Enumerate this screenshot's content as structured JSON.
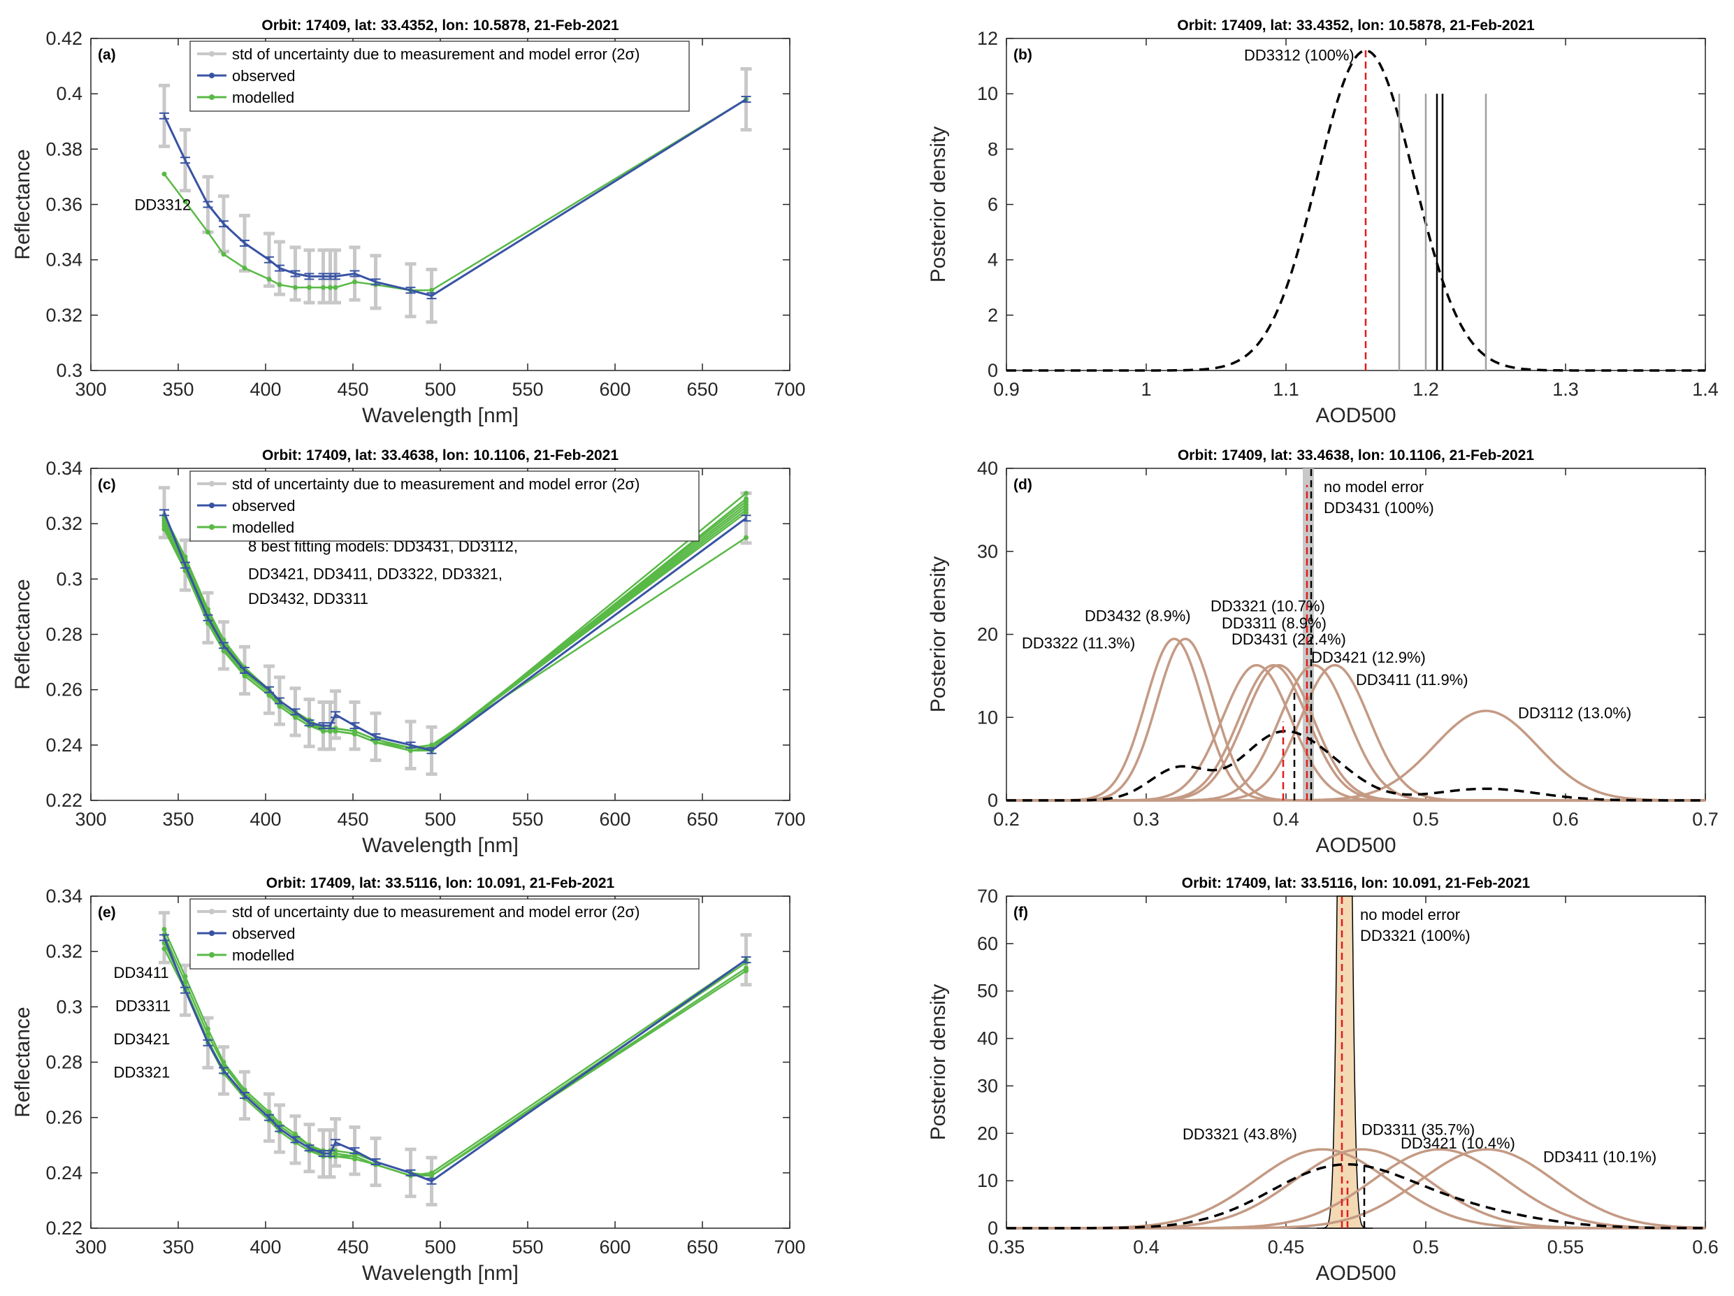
{
  "chart_data": [
    {
      "panel": "(a)",
      "type": "line",
      "title": "Orbit: 17409, lat: 33.4352, lon: 10.5878, 21-Feb-2021",
      "xlabel": "Wavelength [nm]",
      "ylabel": "Reflectance",
      "xlim": [
        300,
        700
      ],
      "ylim": [
        0.3,
        0.42
      ],
      "xticks": [
        300,
        350,
        400,
        450,
        500,
        550,
        600,
        650,
        700
      ],
      "yticks": [
        0.3,
        0.32,
        0.34,
        0.36,
        0.38,
        0.4,
        0.42
      ],
      "x": [
        342,
        354,
        367,
        376,
        388,
        402,
        408,
        417,
        425,
        433,
        437,
        440,
        451,
        463,
        483,
        495,
        675
      ],
      "legend": {
        "std": "std of uncertainty due to measurement and model error (2σ)",
        "observed": "observed",
        "modelled": "modelled"
      },
      "annotations": [
        {
          "text": "DD3312",
          "x": 325,
          "y": 0.358
        }
      ],
      "std_half_width": [
        0.011,
        0.011,
        0.01,
        0.01,
        0.01,
        0.0095,
        0.0095,
        0.0095,
        0.0095,
        0.0095,
        0.0095,
        0.0095,
        0.0095,
        0.0095,
        0.0095,
        0.0095,
        0.011
      ],
      "std_center": [
        0.392,
        0.376,
        0.36,
        0.353,
        0.346,
        0.34,
        0.337,
        0.335,
        0.334,
        0.334,
        0.334,
        0.334,
        0.335,
        0.332,
        0.329,
        0.327,
        0.398
      ],
      "series": [
        {
          "name": "observed",
          "color": "#3853a4",
          "values": [
            0.392,
            0.376,
            0.36,
            0.353,
            0.346,
            0.34,
            0.337,
            0.335,
            0.334,
            0.334,
            0.334,
            0.334,
            0.335,
            0.332,
            0.329,
            0.327,
            0.398
          ]
        },
        {
          "name": "modelled DD3312",
          "color": "#59b947",
          "values": [
            0.371,
            0.361,
            0.35,
            0.342,
            0.337,
            0.333,
            0.331,
            0.33,
            0.33,
            0.33,
            0.33,
            0.33,
            0.332,
            0.331,
            0.329,
            0.329,
            0.398
          ]
        }
      ]
    },
    {
      "panel": "(b)",
      "type": "line",
      "title": "Orbit: 17409, lat: 33.4352, lon: 10.5878, 21-Feb-2021",
      "xlabel": "AOD500",
      "ylabel": "Posterior density",
      "xlim": [
        0.9,
        1.4
      ],
      "ylim": [
        0,
        12
      ],
      "xticks": [
        0.9,
        1.0,
        1.1,
        1.2,
        1.3,
        1.4
      ],
      "xtick_labels": [
        "0.9",
        "1",
        "1.1",
        "1.2",
        "1.3",
        "1.4"
      ],
      "yticks": [
        0,
        2,
        4,
        6,
        8,
        10,
        12
      ],
      "curves": [
        {
          "label": "DD3312 (100%)",
          "mu": 1.157,
          "sigma": 0.0345,
          "weight": 1.0,
          "style": "dashed-black",
          "label_x": 1.07,
          "label_y": 11.2
        }
      ],
      "vlines": [
        {
          "x": 1.157,
          "ymax": 11.6,
          "color": "#e31a1c",
          "style": "dashed"
        },
        {
          "x": 1.181,
          "ymax": 10.0,
          "color": "#a0a0a0",
          "style": "solid"
        },
        {
          "x": 1.2,
          "ymax": 10.0,
          "color": "#a0a0a0",
          "style": "solid"
        },
        {
          "x": 1.208,
          "ymax": 10.0,
          "color": "#000000",
          "style": "solid"
        },
        {
          "x": 1.212,
          "ymax": 10.0,
          "color": "#000000",
          "style": "solid"
        },
        {
          "x": 1.243,
          "ymax": 10.0,
          "color": "#a0a0a0",
          "style": "solid"
        }
      ]
    },
    {
      "panel": "(c)",
      "type": "line",
      "title": "Orbit: 17409, lat: 33.4638, lon: 10.1106, 21-Feb-2021",
      "xlabel": "Wavelength [nm]",
      "ylabel": "Reflectance",
      "xlim": [
        300,
        700
      ],
      "ylim": [
        0.22,
        0.34
      ],
      "xticks": [
        300,
        350,
        400,
        450,
        500,
        550,
        600,
        650,
        700
      ],
      "yticks": [
        0.22,
        0.24,
        0.26,
        0.28,
        0.3,
        0.32,
        0.34
      ],
      "x": [
        342,
        354,
        367,
        376,
        388,
        402,
        408,
        417,
        425,
        433,
        437,
        440,
        451,
        463,
        483,
        495,
        675
      ],
      "legend": {
        "std": "std of uncertainty due to measurement and model error (2σ)",
        "observed": "observed",
        "modelled": "modelled"
      },
      "annotations": [
        {
          "text": "8 best fitting models: DD3431, DD3112,",
          "x": 390,
          "y": 0.31
        },
        {
          "text": "DD3421, DD3411, DD3322, DD3321,",
          "x": 390,
          "y": 0.3
        },
        {
          "text": "DD3432, DD3311",
          "x": 390,
          "y": 0.291
        }
      ],
      "std_half_width": [
        0.009,
        0.009,
        0.009,
        0.0085,
        0.0085,
        0.0085,
        0.0085,
        0.0085,
        0.0085,
        0.0085,
        0.0085,
        0.0085,
        0.0085,
        0.0085,
        0.0085,
        0.0085,
        0.009
      ],
      "std_center": [
        0.324,
        0.305,
        0.286,
        0.276,
        0.267,
        0.26,
        0.256,
        0.252,
        0.248,
        0.247,
        0.247,
        0.251,
        0.247,
        0.243,
        0.24,
        0.238,
        0.322
      ],
      "series": [
        {
          "name": "observed",
          "color": "#3853a4",
          "values": [
            0.324,
            0.305,
            0.286,
            0.276,
            0.267,
            0.26,
            0.256,
            0.252,
            0.248,
            0.247,
            0.247,
            0.251,
            0.247,
            0.243,
            0.24,
            0.238,
            0.322
          ]
        },
        {
          "name": "DD3431",
          "color": "#59b947",
          "values": [
            0.322,
            0.307,
            0.289,
            0.278,
            0.268,
            0.26,
            0.256,
            0.252,
            0.249,
            0.246,
            0.246,
            0.246,
            0.245,
            0.242,
            0.239,
            0.239,
            0.328
          ]
        },
        {
          "name": "DD3112",
          "color": "#59b947",
          "values": [
            0.321,
            0.306,
            0.287,
            0.276,
            0.266,
            0.259,
            0.255,
            0.251,
            0.248,
            0.245,
            0.245,
            0.245,
            0.244,
            0.241,
            0.239,
            0.24,
            0.315
          ]
        },
        {
          "name": "DD3421",
          "color": "#59b947",
          "values": [
            0.323,
            0.308,
            0.289,
            0.278,
            0.268,
            0.26,
            0.256,
            0.252,
            0.249,
            0.246,
            0.246,
            0.246,
            0.245,
            0.242,
            0.239,
            0.239,
            0.326
          ]
        },
        {
          "name": "DD3411",
          "color": "#59b947",
          "values": [
            0.322,
            0.307,
            0.288,
            0.277,
            0.267,
            0.26,
            0.256,
            0.252,
            0.248,
            0.246,
            0.246,
            0.246,
            0.245,
            0.242,
            0.239,
            0.239,
            0.324
          ]
        },
        {
          "name": "DD3322",
          "color": "#59b947",
          "values": [
            0.318,
            0.303,
            0.284,
            0.274,
            0.265,
            0.258,
            0.254,
            0.25,
            0.247,
            0.245,
            0.245,
            0.245,
            0.244,
            0.241,
            0.238,
            0.238,
            0.331
          ]
        },
        {
          "name": "DD3321",
          "color": "#59b947",
          "values": [
            0.319,
            0.304,
            0.285,
            0.275,
            0.265,
            0.258,
            0.254,
            0.25,
            0.247,
            0.245,
            0.245,
            0.245,
            0.244,
            0.241,
            0.238,
            0.238,
            0.329
          ]
        },
        {
          "name": "DD3432",
          "color": "#59b947",
          "values": [
            0.32,
            0.305,
            0.286,
            0.276,
            0.266,
            0.259,
            0.255,
            0.251,
            0.248,
            0.245,
            0.245,
            0.245,
            0.244,
            0.241,
            0.238,
            0.239,
            0.327
          ]
        },
        {
          "name": "DD3311",
          "color": "#59b947",
          "values": [
            0.321,
            0.306,
            0.287,
            0.277,
            0.267,
            0.259,
            0.255,
            0.251,
            0.248,
            0.246,
            0.246,
            0.246,
            0.245,
            0.242,
            0.239,
            0.239,
            0.325
          ]
        }
      ]
    },
    {
      "panel": "(d)",
      "type": "line",
      "title": "Orbit: 17409, lat: 33.4638, lon: 10.1106, 21-Feb-2021",
      "xlabel": "AOD500",
      "ylabel": "Posterior density",
      "xlim": [
        0.2,
        0.7
      ],
      "ylim": [
        0,
        40
      ],
      "xticks": [
        0.2,
        0.3,
        0.4,
        0.5,
        0.6,
        0.7
      ],
      "xtick_labels": [
        "0.2",
        "0.3",
        "0.4",
        "0.5",
        "0.6",
        "0.7"
      ],
      "yticks": [
        0,
        10,
        20,
        30,
        40
      ],
      "no_model_error": {
        "label1": "no model error",
        "label2": "DD3431 (100%)",
        "center": 0.416,
        "half_width": 0.004
      },
      "curves": [
        {
          "label": "DD3322 (11.3%)",
          "mu": 0.32,
          "sigma": 0.0205,
          "weight": 0.113,
          "style": "brown",
          "label_x": 0.211,
          "label_y": 18.3
        },
        {
          "label": "DD3432 (8.9%)",
          "mu": 0.328,
          "sigma": 0.0205,
          "weight": 0.089,
          "style": "brown",
          "label_x": 0.256,
          "label_y": 21.6
        },
        {
          "label": "DD3321 (10.7%)",
          "mu": 0.379,
          "sigma": 0.0245,
          "weight": 0.107,
          "style": "brown",
          "label_x": 0.346,
          "label_y": 22.8
        },
        {
          "label": "DD3311 (8.9%)",
          "mu": 0.391,
          "sigma": 0.0245,
          "weight": 0.089,
          "style": "brown",
          "label_x": 0.354,
          "label_y": 20.7
        },
        {
          "label": "DD3431 (22.4%)",
          "mu": 0.395,
          "sigma": 0.0245,
          "weight": 0.224,
          "style": "brown",
          "label_x": 0.361,
          "label_y": 18.8
        },
        {
          "label": "DD3421 (12.9%)",
          "mu": 0.42,
          "sigma": 0.0245,
          "weight": 0.129,
          "style": "brown",
          "label_x": 0.418,
          "label_y": 16.6
        },
        {
          "label": "DD3411 (11.9%)",
          "mu": 0.435,
          "sigma": 0.0245,
          "weight": 0.119,
          "style": "brown",
          "label_x": 0.45,
          "label_y": 13.9
        },
        {
          "label": "DD3112 (13.0%)",
          "mu": 0.543,
          "sigma": 0.037,
          "weight": 0.13,
          "style": "brown",
          "label_x": 0.566,
          "label_y": 9.9
        }
      ],
      "mixture": true,
      "vlines": [
        {
          "x": 0.398,
          "ymax": 9.5,
          "color": "#e31a1c",
          "style": "dashed"
        },
        {
          "x": 0.406,
          "ymax": 13.0,
          "color": "#000000",
          "style": "dashed"
        },
        {
          "x": 0.415,
          "ymax": 38.0,
          "color": "#e31a1c",
          "style": "dashed"
        },
        {
          "x": 0.418,
          "ymax": 40.0,
          "color": "#000000",
          "style": "dashed"
        }
      ]
    },
    {
      "panel": "(e)",
      "type": "line",
      "title": "Orbit: 17409, lat: 33.5116, lon: 10.091, 21-Feb-2021",
      "xlabel": "Wavelength [nm]",
      "ylabel": "Reflectance",
      "xlim": [
        300,
        700
      ],
      "ylim": [
        0.22,
        0.34
      ],
      "xticks": [
        300,
        350,
        400,
        450,
        500,
        550,
        600,
        650,
        700
      ],
      "yticks": [
        0.22,
        0.24,
        0.26,
        0.28,
        0.3,
        0.32,
        0.34
      ],
      "x": [
        342,
        354,
        367,
        376,
        388,
        402,
        408,
        417,
        425,
        433,
        437,
        440,
        451,
        463,
        483,
        495,
        675
      ],
      "legend": {
        "std": "std of uncertainty due to measurement and model error (2σ)",
        "observed": "observed",
        "modelled": "modelled"
      },
      "annotations": [
        {
          "text": "DD3411",
          "x": 313,
          "y": 0.3105
        },
        {
          "text": "DD3311",
          "x": 314,
          "y": 0.2985
        },
        {
          "text": "DD3421",
          "x": 313,
          "y": 0.2865
        },
        {
          "text": "DD3321",
          "x": 313,
          "y": 0.2745
        }
      ],
      "std_half_width": [
        0.009,
        0.009,
        0.009,
        0.0085,
        0.0085,
        0.0085,
        0.0085,
        0.0085,
        0.0085,
        0.0085,
        0.0085,
        0.0085,
        0.0085,
        0.0085,
        0.0085,
        0.0085,
        0.009
      ],
      "std_center": [
        0.325,
        0.306,
        0.287,
        0.277,
        0.268,
        0.26,
        0.256,
        0.252,
        0.249,
        0.247,
        0.247,
        0.251,
        0.248,
        0.244,
        0.24,
        0.237,
        0.317
      ],
      "series": [
        {
          "name": "observed",
          "color": "#3853a4",
          "values": [
            0.325,
            0.306,
            0.287,
            0.277,
            0.268,
            0.26,
            0.256,
            0.252,
            0.249,
            0.247,
            0.247,
            0.251,
            0.248,
            0.244,
            0.24,
            0.237,
            0.317
          ]
        },
        {
          "name": "DD3411",
          "color": "#59b947",
          "values": [
            0.328,
            0.311,
            0.292,
            0.28,
            0.27,
            0.262,
            0.258,
            0.254,
            0.25,
            0.248,
            0.248,
            0.248,
            0.247,
            0.244,
            0.24,
            0.239,
            0.313
          ]
        },
        {
          "name": "DD3311",
          "color": "#59b947",
          "values": [
            0.323,
            0.307,
            0.288,
            0.277,
            0.268,
            0.26,
            0.256,
            0.252,
            0.249,
            0.246,
            0.246,
            0.246,
            0.246,
            0.243,
            0.239,
            0.239,
            0.316
          ]
        },
        {
          "name": "DD3421",
          "color": "#59b947",
          "values": [
            0.326,
            0.309,
            0.29,
            0.279,
            0.269,
            0.261,
            0.257,
            0.253,
            0.25,
            0.247,
            0.247,
            0.247,
            0.246,
            0.243,
            0.239,
            0.239,
            0.314
          ]
        },
        {
          "name": "DD3321",
          "color": "#59b947",
          "values": [
            0.321,
            0.306,
            0.287,
            0.276,
            0.267,
            0.259,
            0.255,
            0.251,
            0.248,
            0.246,
            0.246,
            0.246,
            0.245,
            0.243,
            0.239,
            0.24,
            0.317
          ]
        }
      ]
    },
    {
      "panel": "(f)",
      "type": "line",
      "title": "Orbit: 17409, lat: 33.5116, lon: 10.091, 21-Feb-2021",
      "xlabel": "AOD500",
      "ylabel": "Posterior density",
      "xlim": [
        0.35,
        0.6
      ],
      "ylim": [
        0,
        70
      ],
      "xticks": [
        0.35,
        0.4,
        0.45,
        0.5,
        0.55,
        0.6
      ],
      "xtick_labels": [
        "0.35",
        "0.4",
        "0.45",
        "0.5",
        "0.55",
        "0.6"
      ],
      "yticks": [
        0,
        10,
        20,
        30,
        40,
        50,
        60,
        70
      ],
      "no_model_error": {
        "label1": "no model error",
        "label2": "DD3321 (100%)",
        "center": 0.471,
        "half_width": 0.0025,
        "sigma": 0.0018,
        "dist_label": "shaded"
      },
      "curves": [
        {
          "label": "DD3321 (43.8%)",
          "mu": 0.463,
          "sigma": 0.024,
          "weight": 0.438,
          "style": "brown",
          "label_x": 0.413,
          "label_y": 18.7
        },
        {
          "label": "DD3311 (35.7%)",
          "mu": 0.477,
          "sigma": 0.024,
          "weight": 0.357,
          "style": "brown",
          "label_x": 0.477,
          "label_y": 19.7
        },
        {
          "label": "DD3421 (10.4%)",
          "mu": 0.505,
          "sigma": 0.024,
          "weight": 0.104,
          "style": "brown",
          "label_x": 0.491,
          "label_y": 16.8
        },
        {
          "label": "DD3411 (10.1%)",
          "mu": 0.522,
          "sigma": 0.024,
          "weight": 0.101,
          "style": "brown",
          "label_x": 0.542,
          "label_y": 13.9
        }
      ],
      "mixture": true,
      "vlines": [
        {
          "x": 0.47,
          "ymax": 70.0,
          "color": "#e31a1c",
          "style": "dashed"
        },
        {
          "x": 0.472,
          "ymax": 10.0,
          "color": "#e31a1c",
          "style": "dashed"
        },
        {
          "x": 0.478,
          "ymax": 14.0,
          "color": "#000000",
          "style": "dashed"
        }
      ]
    }
  ]
}
